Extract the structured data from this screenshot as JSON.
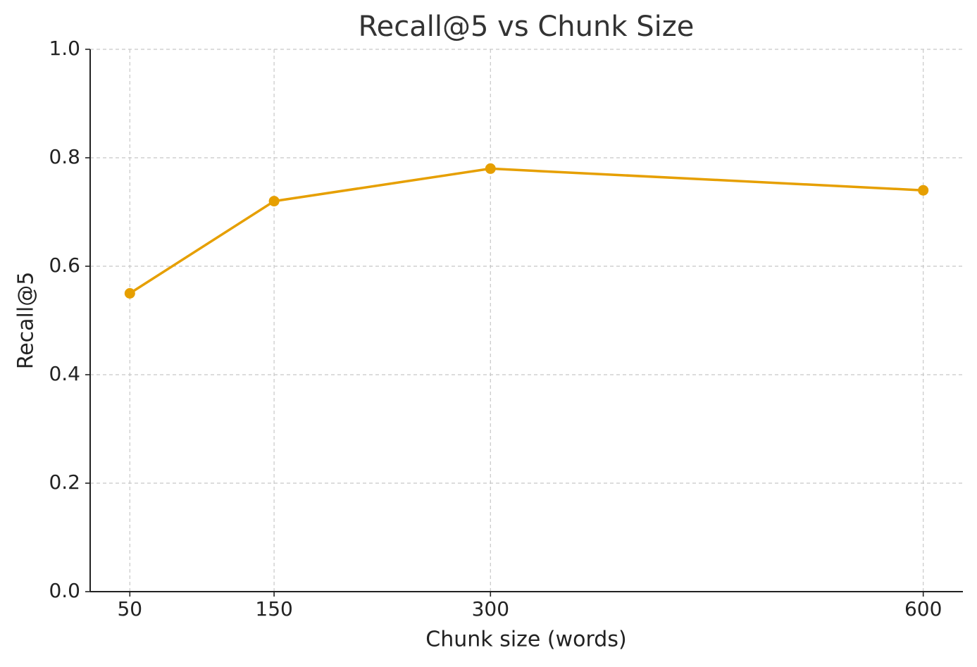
{
  "chart_data": {
    "type": "line",
    "title": "Recall@5 vs Chunk Size",
    "x_label": "Chunk size (words)",
    "y_label": "Recall@5",
    "x": [
      50,
      150,
      300,
      600
    ],
    "values": [
      0.55,
      0.72,
      0.78,
      0.74
    ],
    "color": "#e69f00",
    "xlim": [
      22.5,
      627.5
    ],
    "xticks": [
      50,
      150,
      300,
      600
    ],
    "ylim": [
      0,
      1
    ],
    "yticks": [
      {
        "value": 0,
        "label": "0.0"
      },
      0.2,
      0.4,
      0.6,
      0.8,
      {
        "value": 1,
        "label": "1.0"
      }
    ],
    "grid": true,
    "markers": true
  }
}
